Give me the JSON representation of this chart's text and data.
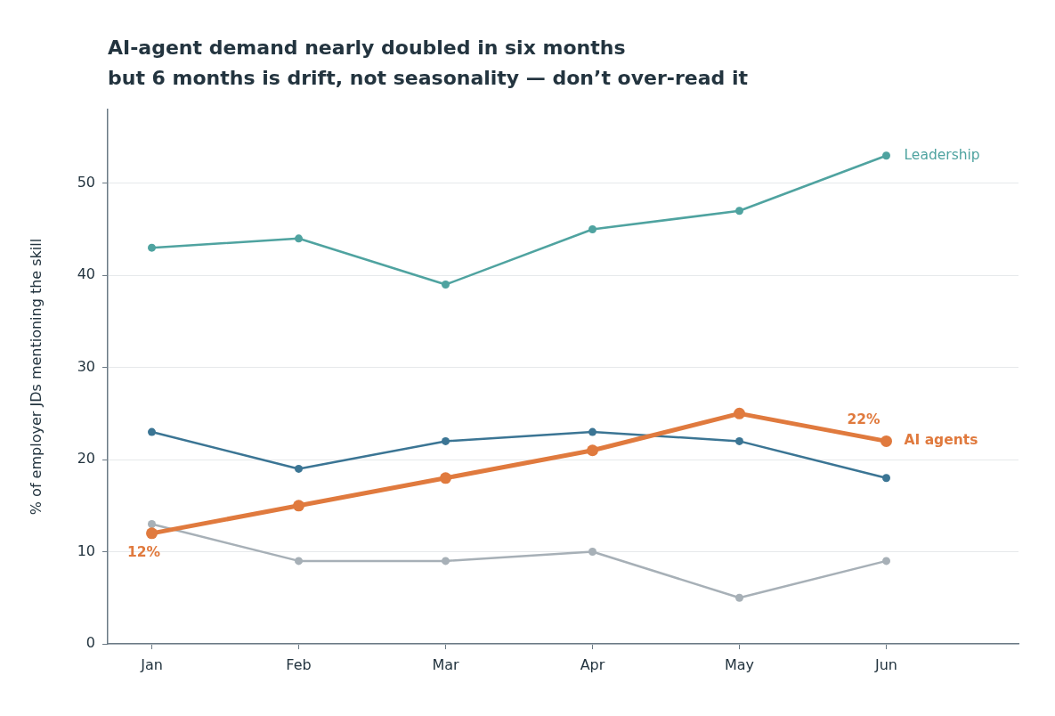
{
  "chart_data": {
    "type": "line",
    "title": "AI-agent demand nearly doubled in six months\nbut 6 months is drift, not seasonality — don’t over-read it",
    "ylabel": "% of employer JDs mentioning the skill",
    "categories": [
      "Jan",
      "Feb",
      "Mar",
      "Apr",
      "May",
      "Jun"
    ],
    "series": [
      {
        "name": "Leadership",
        "color": "#4fa3a0",
        "values": [
          43,
          44,
          39,
          45,
          47,
          53
        ]
      },
      {
        "color": "#3b7594",
        "values": [
          23,
          19,
          22,
          23,
          22,
          18
        ]
      },
      {
        "color": "#a7b0b7",
        "values": [
          13,
          9,
          9,
          10,
          5,
          9
        ]
      },
      {
        "name": "AI agents",
        "color": "#e07a3e",
        "values": [
          12,
          15,
          18,
          21,
          25,
          22
        ],
        "value_labels": [
          "12%",
          null,
          null,
          null,
          null,
          "22%"
        ]
      }
    ],
    "ylim": [
      0,
      58
    ],
    "yticks": [
      0,
      10,
      20,
      30,
      40,
      50
    ],
    "grid": "y",
    "marker": "circle"
  }
}
